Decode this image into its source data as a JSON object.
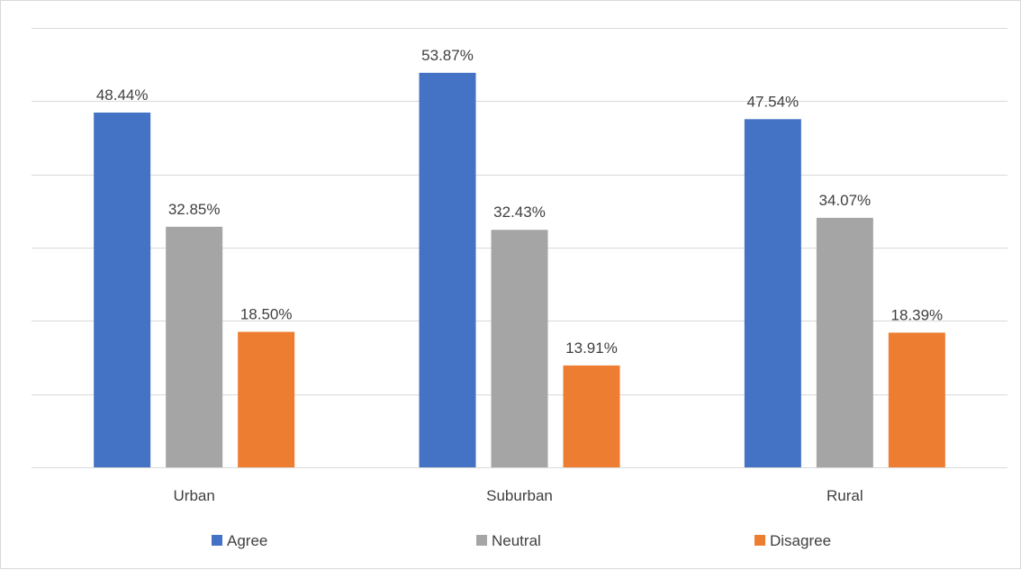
{
  "chart_data": {
    "type": "bar",
    "title": "",
    "xlabel": "",
    "ylabel": "",
    "ylim": [
      0,
      60
    ],
    "grid": true,
    "legend_position": "bottom",
    "categories": [
      "Urban",
      "Suburban",
      "Rural"
    ],
    "series": [
      {
        "name": "Agree",
        "color": "#4472c4",
        "values": [
          48.44,
          53.87,
          47.54
        ],
        "labels": [
          "48.44%",
          "53.87%",
          "47.54%"
        ]
      },
      {
        "name": "Neutral",
        "color": "#a5a5a5",
        "values": [
          32.85,
          32.43,
          34.07
        ],
        "labels": [
          "32.85%",
          "32.43%",
          "34.07%"
        ]
      },
      {
        "name": "Disagree",
        "color": "#ed7d31",
        "values": [
          18.5,
          13.91,
          18.39
        ],
        "labels": [
          "18.50%",
          "13.91%",
          "18.39%"
        ]
      }
    ]
  }
}
